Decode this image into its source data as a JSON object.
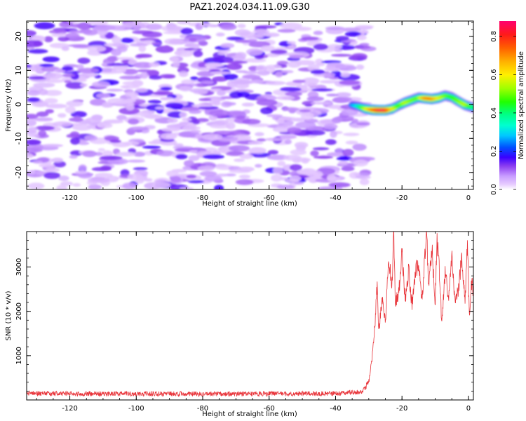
{
  "figure_title": "PAZ1.2024.034.11.09.G30",
  "chart_data": [
    {
      "type": "heatmap",
      "panel": "top",
      "xlabel": "Height of straight line (km)",
      "ylabel": "Frequency (Hz)",
      "xlim": [
        -133,
        1.5
      ],
      "ylim": [
        -25,
        24.5
      ],
      "xticks": [
        -120,
        -100,
        -80,
        -60,
        -40,
        -20,
        0
      ],
      "yticks": [
        -20,
        -10,
        0,
        10,
        20
      ],
      "colorbar": {
        "label": "Normalized spectral amplitude",
        "range": [
          0,
          0.88
        ],
        "ticks": [
          0.0,
          0.2,
          0.4,
          0.6,
          0.8
        ],
        "colormap": "gist_rainbow_r"
      },
      "noise_region": {
        "x_range": [
          -133,
          -30
        ],
        "typical_amplitude": [
          0.03,
          0.12
        ]
      },
      "signal_ridge": {
        "x": [
          -35,
          -33,
          -31,
          -29,
          -27,
          -25,
          -23,
          -21,
          -19,
          -17,
          -15,
          -13,
          -11,
          -9,
          -7,
          -5,
          -3,
          -1,
          1.5
        ],
        "frequency": [
          -0.2,
          -0.6,
          -1.3,
          -1.6,
          -1.7,
          -1.7,
          -1.3,
          -0.3,
          0.6,
          1.3,
          2.0,
          1.8,
          1.6,
          1.9,
          2.6,
          2.1,
          0.9,
          -0.2,
          -1.0
        ],
        "amplitude": [
          0.25,
          0.35,
          0.55,
          0.7,
          0.84,
          0.86,
          0.62,
          0.45,
          0.55,
          0.5,
          0.48,
          0.7,
          0.72,
          0.6,
          0.5,
          0.45,
          0.5,
          0.55,
          0.4
        ]
      }
    },
    {
      "type": "line",
      "panel": "bottom",
      "xlabel": "Height of straight line (km)",
      "ylabel": "SNR (10 * v/v)",
      "xlim": [
        -133,
        1.5
      ],
      "ylim": [
        0,
        3800
      ],
      "xticks": [
        -120,
        -100,
        -80,
        -60,
        -40,
        -20,
        0
      ],
      "yticks": [
        1000,
        2000,
        3000
      ],
      "color": "#e8343a",
      "series": [
        {
          "x": [
            -133,
            -120,
            -100,
            -80,
            -60,
            -40,
            -32,
            -30,
            -29,
            -28,
            -27.5,
            -27,
            -26,
            -25,
            -24,
            -23,
            -22.5,
            -22,
            -21,
            -20,
            -19,
            -18,
            -17,
            -16,
            -15,
            -14,
            -13,
            -12.5,
            -12,
            -11,
            -10,
            -9.5,
            -9,
            -8,
            -7,
            -6,
            -5,
            -4,
            -3,
            -2,
            -1,
            -0.3,
            0.3,
            1,
            1.5
          ],
          "values": [
            150,
            140,
            140,
            135,
            140,
            145,
            180,
            400,
            950,
            1850,
            2600,
            1500,
            2300,
            1750,
            3200,
            2550,
            3800,
            2200,
            2400,
            3300,
            2200,
            2950,
            2100,
            2900,
            3100,
            2150,
            3450,
            3750,
            2450,
            3450,
            2200,
            3600,
            3300,
            1700,
            2900,
            2300,
            3250,
            2200,
            2500,
            3200,
            2300,
            3500,
            1850,
            2700,
            2400
          ]
        }
      ]
    }
  ]
}
